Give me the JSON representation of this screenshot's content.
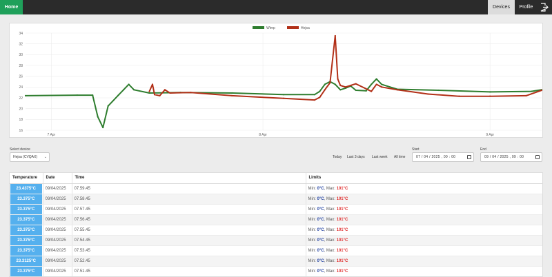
{
  "nav": {
    "home_label": "Home",
    "devices_label": "Devices",
    "profile_label": "Profile",
    "logout_icon": "logout-icon"
  },
  "chart_data": {
    "type": "line",
    "legend": [
      "Wimp",
      "Hejsa"
    ],
    "legend_position": "top-center",
    "colors": {
      "Wimp": "#2e7d2e",
      "Hejsa": "#b23018"
    },
    "ylim": [
      16,
      34
    ],
    "y_ticks": [
      "16",
      "18",
      "20",
      "22",
      "24",
      "26",
      "28",
      "30",
      "32",
      "34"
    ],
    "x_ticks": [
      "7 Apr",
      "8 Apr",
      "9 Apr"
    ],
    "x_range": [
      0,
      100
    ],
    "x_tick_positions": [
      5,
      46,
      90
    ],
    "grid": true,
    "series": [
      {
        "name": "Wimp",
        "points": [
          [
            0,
            22.4
          ],
          [
            10,
            22.5
          ],
          [
            13,
            22.5
          ],
          [
            14,
            18.5
          ],
          [
            15,
            16.5
          ],
          [
            16,
            20.5
          ],
          [
            17,
            21.5
          ],
          [
            18,
            22.5
          ],
          [
            19,
            23.5
          ],
          [
            20,
            24.5
          ],
          [
            21,
            23.5
          ],
          [
            24,
            22.9
          ],
          [
            30,
            23.0
          ],
          [
            40,
            22.9
          ],
          [
            50,
            22.6
          ],
          [
            56,
            22.6
          ],
          [
            57,
            23.2
          ],
          [
            58,
            24.5
          ],
          [
            59,
            25.0
          ],
          [
            60,
            24.5
          ],
          [
            61,
            23.5
          ],
          [
            62,
            23.8
          ],
          [
            63,
            24.2
          ],
          [
            64,
            23.4
          ],
          [
            66,
            23.3
          ],
          [
            67,
            24.5
          ],
          [
            68,
            25.5
          ],
          [
            69,
            24.5
          ],
          [
            72,
            23.6
          ],
          [
            80,
            23.4
          ],
          [
            90,
            23.1
          ],
          [
            98,
            23.2
          ],
          [
            100,
            23.5
          ]
        ]
      },
      {
        "name": "Hejsa",
        "points": [
          [
            24,
            23.2
          ],
          [
            24.6,
            24.5
          ],
          [
            25,
            22.6
          ],
          [
            26,
            22.4
          ],
          [
            27,
            23.5
          ],
          [
            28,
            22.9
          ],
          [
            32,
            23.0
          ],
          [
            40,
            22.4
          ],
          [
            50,
            21.9
          ],
          [
            56,
            21.6
          ],
          [
            57,
            22.1
          ],
          [
            58,
            23.5
          ],
          [
            59,
            24.8
          ],
          [
            60,
            33.5
          ],
          [
            60.5,
            25.5
          ],
          [
            61,
            24.3
          ],
          [
            62,
            24.0
          ],
          [
            63,
            24.3
          ],
          [
            64,
            24.6
          ],
          [
            67,
            23.2
          ],
          [
            68,
            24.5
          ],
          [
            69,
            24.0
          ],
          [
            72,
            23.5
          ],
          [
            78,
            22.7
          ],
          [
            84,
            22.3
          ],
          [
            90,
            22.3
          ],
          [
            97,
            22.4
          ],
          [
            100,
            23.4
          ]
        ]
      }
    ]
  },
  "controls": {
    "select_label": "Select device",
    "selected_device": "Hejsa (CVQAX)",
    "range_links": [
      "Today",
      "Last 3 days",
      "Last week",
      "All time"
    ],
    "start_label": "Start",
    "start_value": "07 / 04 / 2025 ,  00 : 00",
    "end_label": "End",
    "end_value": "09 / 04 / 2025 ,  09 : 00"
  },
  "table": {
    "headers": [
      "Temperature",
      "Date",
      "Time",
      "Limits"
    ],
    "limit_labels": {
      "min": "Min: ",
      "max": ", Max: "
    },
    "rows": [
      {
        "temp": "23.4375°C",
        "date": "09/04/2025",
        "time": "07.59.45",
        "min": "0°C",
        "max": "101°C"
      },
      {
        "temp": "23.375°C",
        "date": "09/04/2025",
        "time": "07.58.45",
        "min": "0°C",
        "max": "101°C"
      },
      {
        "temp": "23.375°C",
        "date": "09/04/2025",
        "time": "07.57.45",
        "min": "0°C",
        "max": "101°C"
      },
      {
        "temp": "23.375°C",
        "date": "09/04/2025",
        "time": "07.56.45",
        "min": "0°C",
        "max": "101°C"
      },
      {
        "temp": "23.375°C",
        "date": "09/04/2025",
        "time": "07.55.45",
        "min": "0°C",
        "max": "101°C"
      },
      {
        "temp": "23.375°C",
        "date": "09/04/2025",
        "time": "07.54.45",
        "min": "0°C",
        "max": "101°C"
      },
      {
        "temp": "23.375°C",
        "date": "09/04/2025",
        "time": "07.53.45",
        "min": "0°C",
        "max": "101°C"
      },
      {
        "temp": "23.3125°C",
        "date": "09/04/2025",
        "time": "07.52.45",
        "min": "0°C",
        "max": "101°C"
      },
      {
        "temp": "23.375°C",
        "date": "09/04/2025",
        "time": "07.51.45",
        "min": "0°C",
        "max": "101°C"
      }
    ]
  }
}
